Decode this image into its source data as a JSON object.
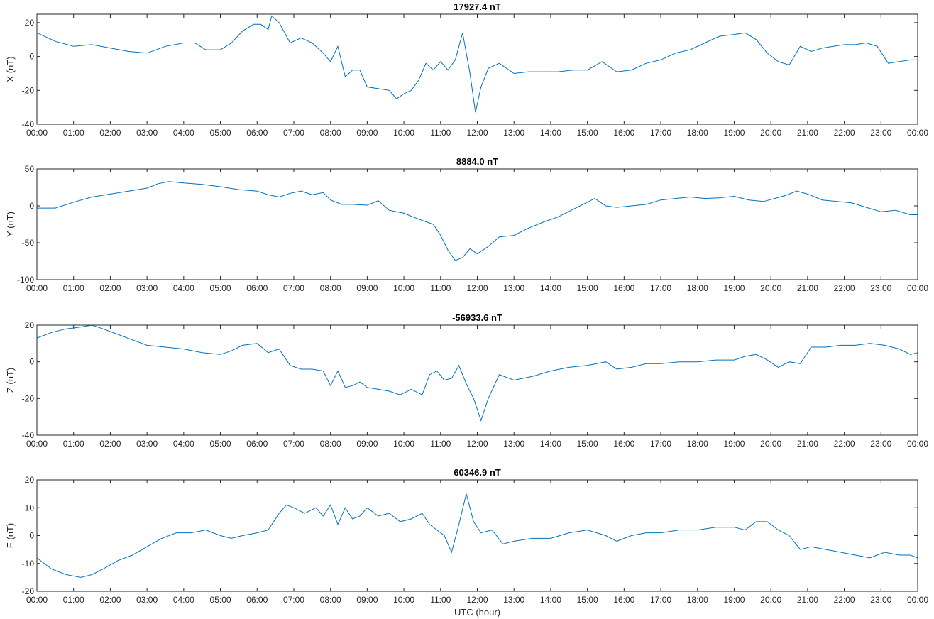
{
  "chart_data": [
    {
      "type": "line",
      "title": "17927.4 nT",
      "ylabel": "X (nT)",
      "xlabel": "",
      "x_ticks": [
        "00:00",
        "01:00",
        "02:00",
        "03:00",
        "04:00",
        "05:00",
        "06:00",
        "07:00",
        "08:00",
        "09:00",
        "10:00",
        "11:00",
        "12:00",
        "13:00",
        "14:00",
        "15:00",
        "16:00",
        "17:00",
        "18:00",
        "19:00",
        "20:00",
        "21:00",
        "22:00",
        "23:00",
        "00:00"
      ],
      "xlim": [
        0,
        24
      ],
      "ylim": [
        -40,
        25
      ],
      "y_ticks": [
        -40,
        -20,
        0,
        20
      ],
      "grid": false,
      "color": "#0072bd",
      "series": [
        {
          "x": [
            0,
            0.5,
            1,
            1.5,
            2,
            2.5,
            3,
            3.5,
            4,
            4.3,
            4.6,
            5,
            5.3,
            5.6,
            5.9,
            6.1,
            6.3,
            6.4,
            6.6,
            6.9,
            7.2,
            7.5,
            7.8,
            8,
            8.2,
            8.4,
            8.6,
            8.8,
            9,
            9.3,
            9.6,
            9.8,
            10,
            10.2,
            10.4,
            10.6,
            10.8,
            11,
            11.2,
            11.4,
            11.6,
            11.8,
            11.95,
            12.1,
            12.3,
            12.6,
            13,
            13.4,
            13.8,
            14.2,
            14.6,
            15,
            15.4,
            15.8,
            16.2,
            16.6,
            17,
            17.4,
            17.8,
            18.2,
            18.6,
            19,
            19.3,
            19.6,
            19.9,
            20.2,
            20.5,
            20.8,
            21.1,
            21.4,
            21.7,
            22,
            22.3,
            22.6,
            22.9,
            23.2,
            23.5,
            23.8,
            24
          ],
          "y": [
            14,
            9,
            6,
            7,
            5,
            3,
            2,
            6,
            8,
            8,
            4,
            4,
            8,
            15,
            19,
            19,
            16,
            24,
            20,
            8,
            11,
            8,
            2,
            -3,
            6,
            -12,
            -8,
            -8,
            -18,
            -19,
            -20,
            -25,
            -22,
            -20,
            -14,
            -4,
            -8,
            -3,
            -8,
            -2,
            14,
            -10,
            -33,
            -18,
            -7,
            -4,
            -10,
            -9,
            -9,
            -9,
            -8,
            -8,
            -3,
            -9,
            -8,
            -4,
            -2,
            2,
            4,
            8,
            12,
            13,
            14,
            10,
            2,
            -3,
            -5,
            6,
            3,
            5,
            6,
            7,
            7,
            8,
            6,
            -4,
            -3,
            -2,
            -2
          ]
        }
      ]
    },
    {
      "type": "line",
      "title": "8884.0 nT",
      "ylabel": "Y (nT)",
      "xlabel": "",
      "x_ticks": [
        "00:00",
        "01:00",
        "02:00",
        "03:00",
        "04:00",
        "05:00",
        "06:00",
        "07:00",
        "08:00",
        "09:00",
        "10:00",
        "11:00",
        "12:00",
        "13:00",
        "14:00",
        "15:00",
        "16:00",
        "17:00",
        "18:00",
        "19:00",
        "20:00",
        "21:00",
        "22:00",
        "23:00",
        "00:00"
      ],
      "xlim": [
        0,
        24
      ],
      "ylim": [
        -100,
        50
      ],
      "y_ticks": [
        -100,
        -50,
        0,
        50
      ],
      "grid": false,
      "color": "#0072bd",
      "series": [
        {
          "x": [
            0,
            0.5,
            1,
            1.5,
            2,
            2.5,
            3,
            3.3,
            3.6,
            4,
            4.5,
            5,
            5.5,
            6,
            6.3,
            6.6,
            6.9,
            7.2,
            7.5,
            7.8,
            8,
            8.3,
            8.6,
            9,
            9.3,
            9.6,
            10,
            10.4,
            10.8,
            11,
            11.2,
            11.4,
            11.6,
            11.8,
            12,
            12.3,
            12.6,
            13,
            13.4,
            13.8,
            14.2,
            14.6,
            15,
            15.2,
            15.5,
            15.8,
            16.2,
            16.6,
            17,
            17.4,
            17.8,
            18.2,
            18.6,
            19,
            19.4,
            19.8,
            20.1,
            20.4,
            20.7,
            21,
            21.4,
            21.8,
            22.2,
            22.6,
            23,
            23.4,
            23.8,
            24
          ],
          "y": [
            -3,
            -3,
            5,
            12,
            16,
            20,
            24,
            30,
            33,
            31,
            29,
            26,
            22,
            20,
            15,
            12,
            17,
            20,
            15,
            18,
            8,
            2,
            2,
            1,
            7,
            -6,
            -10,
            -18,
            -25,
            -40,
            -60,
            -74,
            -70,
            -58,
            -65,
            -55,
            -42,
            -40,
            -30,
            -22,
            -15,
            -5,
            5,
            10,
            0,
            -2,
            0,
            2,
            8,
            10,
            12,
            10,
            11,
            13,
            8,
            6,
            10,
            14,
            20,
            16,
            8,
            6,
            4,
            -2,
            -8,
            -6,
            -12,
            -12
          ]
        }
      ]
    },
    {
      "type": "line",
      "title": "-56933.6 nT",
      "ylabel": "Z (nT)",
      "xlabel": "",
      "x_ticks": [
        "00:00",
        "01:00",
        "02:00",
        "03:00",
        "04:00",
        "05:00",
        "06:00",
        "07:00",
        "08:00",
        "09:00",
        "10:00",
        "11:00",
        "12:00",
        "13:00",
        "14:00",
        "15:00",
        "16:00",
        "17:00",
        "18:00",
        "19:00",
        "20:00",
        "21:00",
        "22:00",
        "23:00",
        "00:00"
      ],
      "xlim": [
        0,
        24
      ],
      "ylim": [
        -40,
        20
      ],
      "y_ticks": [
        -40,
        -20,
        0,
        20
      ],
      "grid": false,
      "color": "#0072bd",
      "series": [
        {
          "x": [
            0,
            0.4,
            0.8,
            1.2,
            1.5,
            1.8,
            2.2,
            2.6,
            3,
            3.5,
            4,
            4.5,
            5,
            5.3,
            5.6,
            6,
            6.3,
            6.6,
            6.9,
            7.2,
            7.5,
            7.8,
            8,
            8.2,
            8.4,
            8.6,
            8.8,
            9,
            9.3,
            9.6,
            9.9,
            10.2,
            10.5,
            10.7,
            10.9,
            11.1,
            11.3,
            11.5,
            11.7,
            11.9,
            12.1,
            12.3,
            12.6,
            13,
            13.5,
            14,
            14.5,
            15,
            15.5,
            15.8,
            16.2,
            16.6,
            17,
            17.5,
            18,
            18.5,
            19,
            19.3,
            19.6,
            19.9,
            20.2,
            20.5,
            20.8,
            21.1,
            21.5,
            21.9,
            22.3,
            22.7,
            23.1,
            23.5,
            23.8,
            24
          ],
          "y": [
            13,
            16,
            18,
            19,
            20,
            18,
            15,
            12,
            9,
            8,
            7,
            5,
            4,
            6,
            9,
            10,
            5,
            7,
            -2,
            -4,
            -4,
            -5,
            -13,
            -5,
            -14,
            -13,
            -11,
            -14,
            -15,
            -16,
            -18,
            -15,
            -18,
            -7,
            -5,
            -10,
            -9,
            -2,
            -12,
            -20,
            -32,
            -20,
            -7,
            -10,
            -8,
            -5,
            -3,
            -2,
            0,
            -4,
            -3,
            -1,
            -1,
            0,
            0,
            1,
            1,
            3,
            4,
            1,
            -3,
            0,
            -1,
            8,
            8,
            9,
            9,
            10,
            9,
            7,
            4,
            5
          ]
        }
      ]
    },
    {
      "type": "line",
      "title": "60346.9 nT",
      "ylabel": "F (nT)",
      "xlabel": "UTC (hour)",
      "x_ticks": [
        "00:00",
        "01:00",
        "02:00",
        "03:00",
        "04:00",
        "05:00",
        "06:00",
        "07:00",
        "08:00",
        "09:00",
        "10:00",
        "11:00",
        "12:00",
        "13:00",
        "14:00",
        "15:00",
        "16:00",
        "17:00",
        "18:00",
        "19:00",
        "20:00",
        "21:00",
        "22:00",
        "23:00",
        "00:00"
      ],
      "xlim": [
        0,
        24
      ],
      "ylim": [
        -20,
        20
      ],
      "y_ticks": [
        -20,
        -10,
        0,
        10,
        20
      ],
      "grid": false,
      "color": "#0072bd",
      "series": [
        {
          "x": [
            0,
            0.4,
            0.8,
            1.2,
            1.5,
            1.8,
            2.2,
            2.6,
            3,
            3.4,
            3.8,
            4.2,
            4.6,
            5,
            5.3,
            5.6,
            6,
            6.3,
            6.6,
            6.8,
            7,
            7.3,
            7.6,
            7.8,
            8,
            8.2,
            8.4,
            8.6,
            8.8,
            9,
            9.3,
            9.6,
            9.9,
            10.2,
            10.5,
            10.7,
            10.9,
            11.1,
            11.3,
            11.5,
            11.7,
            11.9,
            12.1,
            12.4,
            12.7,
            13,
            13.5,
            14,
            14.5,
            15,
            15.5,
            15.8,
            16.2,
            16.6,
            17,
            17.5,
            18,
            18.5,
            19,
            19.3,
            19.6,
            19.9,
            20.2,
            20.5,
            20.8,
            21.1,
            21.5,
            21.9,
            22.3,
            22.7,
            23.1,
            23.5,
            23.8,
            24
          ],
          "y": [
            -8,
            -12,
            -14,
            -15,
            -14,
            -12,
            -9,
            -7,
            -4,
            -1,
            1,
            1,
            2,
            0,
            -1,
            0,
            1,
            2,
            8,
            11,
            10,
            8,
            10,
            7,
            11,
            4,
            10,
            6,
            7,
            10,
            7,
            8,
            5,
            6,
            8,
            4,
            2,
            0,
            -6,
            4,
            15,
            5,
            1,
            2,
            -3,
            -2,
            -1,
            -1,
            1,
            2,
            0,
            -2,
            0,
            1,
            1,
            2,
            2,
            3,
            3,
            2,
            5,
            5,
            2,
            0,
            -5,
            -4,
            -5,
            -6,
            -7,
            -8,
            -6,
            -7,
            -7,
            -8
          ]
        }
      ]
    }
  ]
}
